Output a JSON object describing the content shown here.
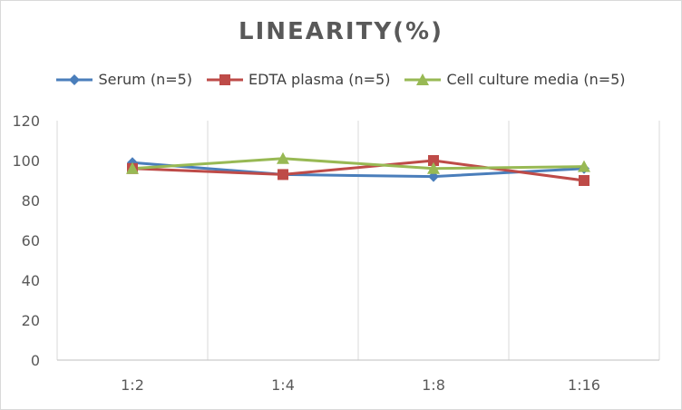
{
  "chart_data": {
    "type": "line",
    "title": "LINEARITY(%)",
    "categories": [
      "1:2",
      "1:4",
      "1:8",
      "1:16"
    ],
    "ylim": [
      0,
      120
    ],
    "yticks": [
      0,
      20,
      40,
      60,
      80,
      100,
      120
    ],
    "grid": "vertical",
    "legend": "top",
    "series": [
      {
        "name": "Serum (n=5)",
        "values": [
          99,
          93,
          92,
          96
        ],
        "color": "#4a7ebb",
        "marker": "diamond"
      },
      {
        "name": "EDTA plasma (n=5)",
        "values": [
          96,
          93,
          100,
          90
        ],
        "color": "#be4b48",
        "marker": "square"
      },
      {
        "name": "Cell culture media (n=5)",
        "values": [
          96,
          101,
          96,
          97
        ],
        "color": "#98b954",
        "marker": "triangle"
      }
    ]
  }
}
